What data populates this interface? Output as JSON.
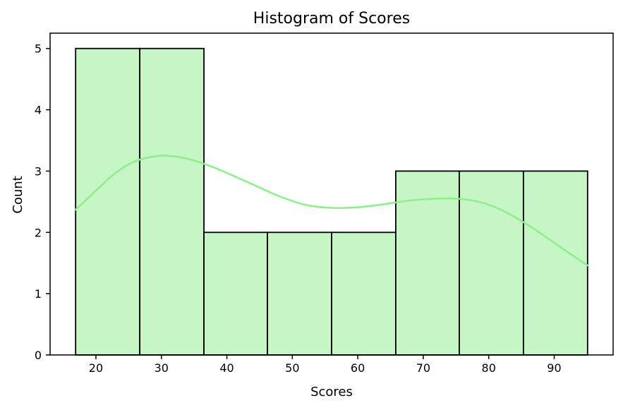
{
  "chart_data": {
    "type": "bar",
    "title": "Histogram of Scores",
    "xlabel": "Scores",
    "ylabel": "Count",
    "bins": [
      {
        "start": 16.9,
        "end": 26.7,
        "count": 5
      },
      {
        "start": 26.7,
        "end": 36.5,
        "count": 5
      },
      {
        "start": 36.5,
        "end": 46.2,
        "count": 2
      },
      {
        "start": 46.2,
        "end": 56.0,
        "count": 2
      },
      {
        "start": 56.0,
        "end": 65.8,
        "count": 2
      },
      {
        "start": 65.8,
        "end": 75.5,
        "count": 3
      },
      {
        "start": 75.5,
        "end": 85.3,
        "count": 3
      },
      {
        "start": 85.3,
        "end": 95.1,
        "count": 3
      }
    ],
    "kde": {
      "x": [
        16.9,
        20,
        23,
        26,
        29,
        31,
        34,
        37,
        40,
        44,
        48,
        52,
        56,
        60,
        64,
        68,
        72,
        75,
        78,
        81,
        84,
        87,
        90,
        93,
        95.1
      ],
      "y": [
        2.37,
        2.68,
        2.97,
        3.16,
        3.24,
        3.25,
        3.2,
        3.1,
        2.97,
        2.78,
        2.59,
        2.45,
        2.4,
        2.41,
        2.46,
        2.52,
        2.55,
        2.55,
        2.51,
        2.41,
        2.25,
        2.05,
        1.83,
        1.61,
        1.46
      ]
    },
    "xlim": [
      13.0,
      99.0
    ],
    "ylim": [
      0,
      5.25
    ],
    "xticks": [
      20,
      30,
      40,
      50,
      60,
      70,
      80,
      90
    ],
    "yticks": [
      0,
      1,
      2,
      3,
      4,
      5
    ],
    "grid": false,
    "legend": "none",
    "colors": {
      "bar_fill": "#c6f5c6",
      "bar_edge": "#000000",
      "kde_line": "#90ee90"
    }
  }
}
